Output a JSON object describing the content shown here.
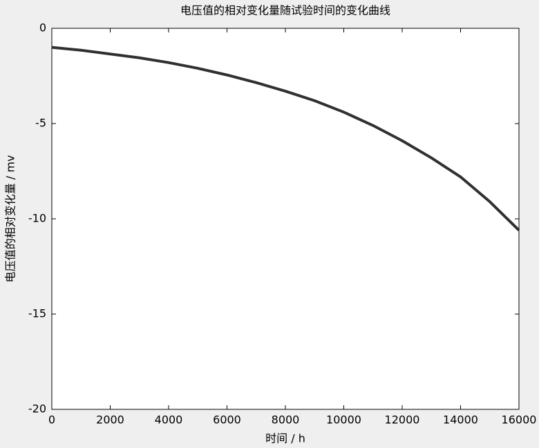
{
  "chart_data": {
    "type": "line",
    "title": "电压值的相对变化量随试验时间的变化曲线",
    "x_label": "时间 / h",
    "y_label": "电压值的相对变化量 / mv",
    "x": [
      0,
      1000,
      2000,
      3000,
      4000,
      5000,
      6000,
      7000,
      8000,
      9000,
      10000,
      11000,
      12000,
      13000,
      14000,
      15000,
      16000
    ],
    "series": [
      {
        "color": "#303030",
        "values": [
          -1.0,
          -1.15,
          -1.35,
          -1.55,
          -1.8,
          -2.1,
          -2.45,
          -2.85,
          -3.3,
          -3.8,
          -4.4,
          -5.1,
          -5.9,
          -6.8,
          -7.8,
          -9.1,
          -10.6
        ]
      }
    ],
    "xlim": [
      0,
      16000
    ],
    "xticks": [
      0,
      2000,
      4000,
      6000,
      8000,
      10000,
      12000,
      14000,
      16000
    ],
    "ylim": [
      -20,
      0
    ],
    "yticks": [
      0,
      -5,
      -10,
      -15,
      -20
    ],
    "grid": false
  }
}
